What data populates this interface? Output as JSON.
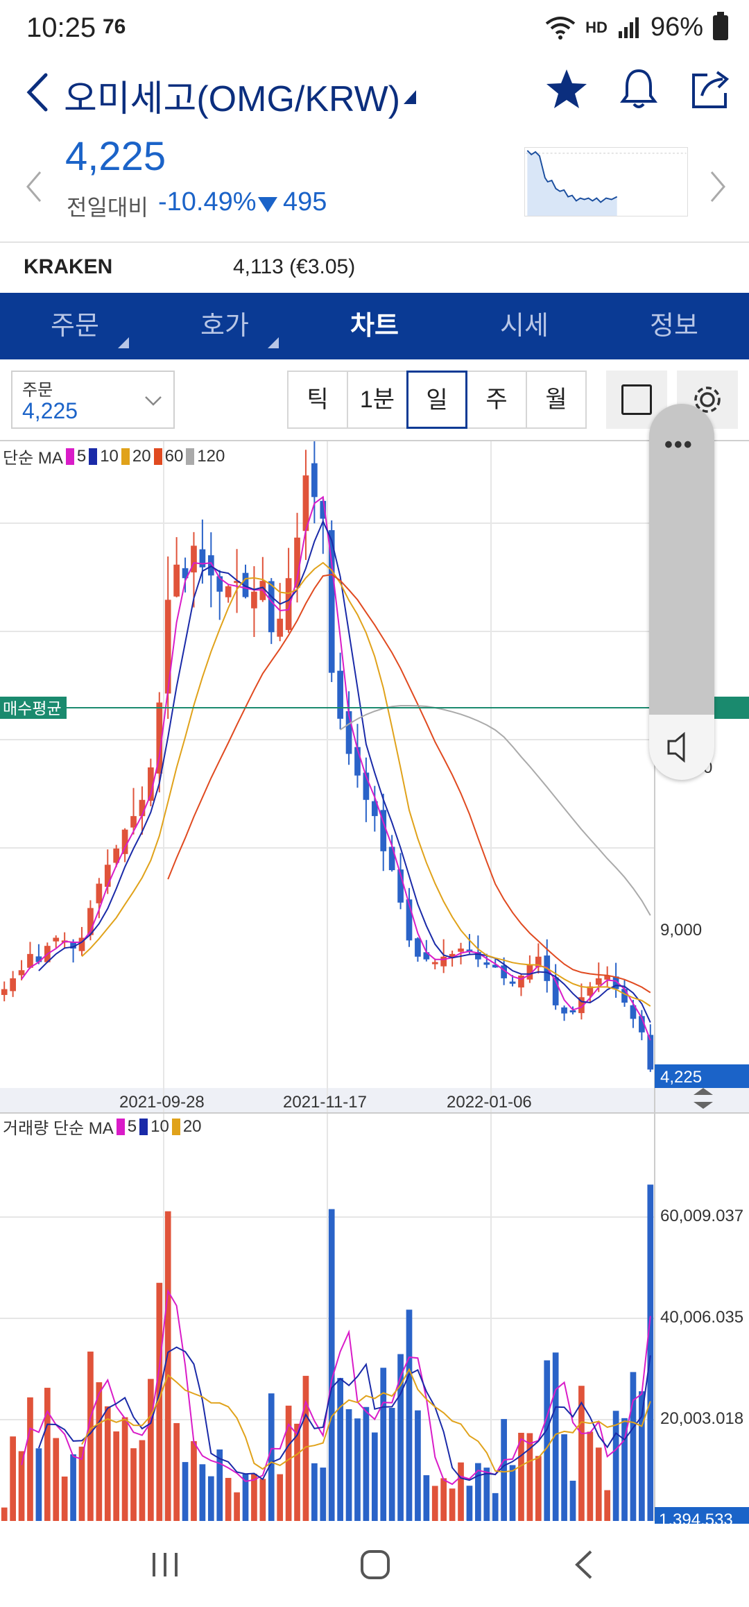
{
  "status_bar": {
    "time": "10:25",
    "extra": "76",
    "network": "HD",
    "battery": "96%"
  },
  "header": {
    "title": "오미세고(OMG/KRW)",
    "icons": [
      "back-icon",
      "star-icon",
      "bell-icon",
      "share-icon"
    ]
  },
  "price": {
    "current": "4,225",
    "change_label": "전일대비",
    "change_pct": "-10.49%",
    "change_value": "495",
    "down_color": "#1b63c8"
  },
  "exchange": {
    "name": "KRAKEN",
    "value": "4,113 (€3.05)"
  },
  "tabs": [
    {
      "label": "주문",
      "active": false
    },
    {
      "label": "호가",
      "active": false
    },
    {
      "label": "차트",
      "active": true
    },
    {
      "label": "시세",
      "active": false
    },
    {
      "label": "정보",
      "active": false
    }
  ],
  "controls": {
    "order_label": "주문",
    "order_value": "4,225",
    "periods": [
      {
        "label": "틱",
        "active": false
      },
      {
        "label": "1분",
        "active": false
      },
      {
        "label": "일",
        "active": true
      },
      {
        "label": "주",
        "active": false
      },
      {
        "label": "월",
        "active": false
      }
    ]
  },
  "chart": {
    "indicator_label": "단순 MA",
    "ma_periods": [
      {
        "label": "5",
        "color": "#d91cc8"
      },
      {
        "label": "10",
        "color": "#1a2aa8"
      },
      {
        "label": "20",
        "color": "#e0a21a"
      },
      {
        "label": "60",
        "color": "#e04a20"
      },
      {
        "label": "120",
        "color": "#aaaaaa"
      }
    ],
    "avg_buy_label": "매수평균",
    "y_tick_partial": "0",
    "y_tick": "9,000",
    "current_price_label": "4,225",
    "x_ticks": [
      "2021-09-28",
      "2021-11-17",
      "2022-01-06"
    ],
    "volume_label": "거래량 단순 MA",
    "volume_ma_periods": [
      {
        "label": "5",
        "color": "#d91cc8"
      },
      {
        "label": "10",
        "color": "#1a2aa8"
      },
      {
        "label": "20",
        "color": "#e0a21a"
      }
    ],
    "volume_ticks": [
      "60,009.037",
      "40,006.035",
      "20,003.018"
    ],
    "current_volume_label": "1,394.533",
    "up_color": "#e0533a",
    "down_color": "#2a63c8"
  },
  "chart_data": {
    "type": "candlestick",
    "x_ticks": [
      "2021-09-28",
      "2021-11-17",
      "2022-01-06"
    ],
    "price_ticks": [
      "9,000"
    ],
    "close": [
      7200,
      7600,
      7900,
      8500,
      8200,
      8800,
      9100,
      9000,
      8700,
      9100,
      10200,
      11100,
      11800,
      12400,
      13100,
      13600,
      14200,
      15400,
      17800,
      21600,
      22900,
      22400,
      23600,
      22800,
      22500,
      21900,
      22100,
      22300,
      21700,
      21900,
      22300,
      20400,
      20900,
      22400,
      23900,
      26200,
      25400,
      24600,
      18900,
      17200,
      15900,
      15100,
      14200,
      13600,
      12300,
      11600,
      10400,
      9000,
      8400,
      8300,
      8200,
      8400,
      8500,
      8700,
      8600,
      8300,
      8100,
      8000,
      7600,
      7400,
      7700,
      8100,
      8400,
      7500,
      6600,
      6300,
      6400,
      6900,
      7300,
      7600,
      7700,
      7200,
      6700,
      6100,
      5600,
      4225
    ],
    "volume_ticks": [
      "60,009.037",
      "40,006.035",
      "20,003.018"
    ],
    "last_volume": "1,394.533",
    "last_price": "4,225"
  }
}
